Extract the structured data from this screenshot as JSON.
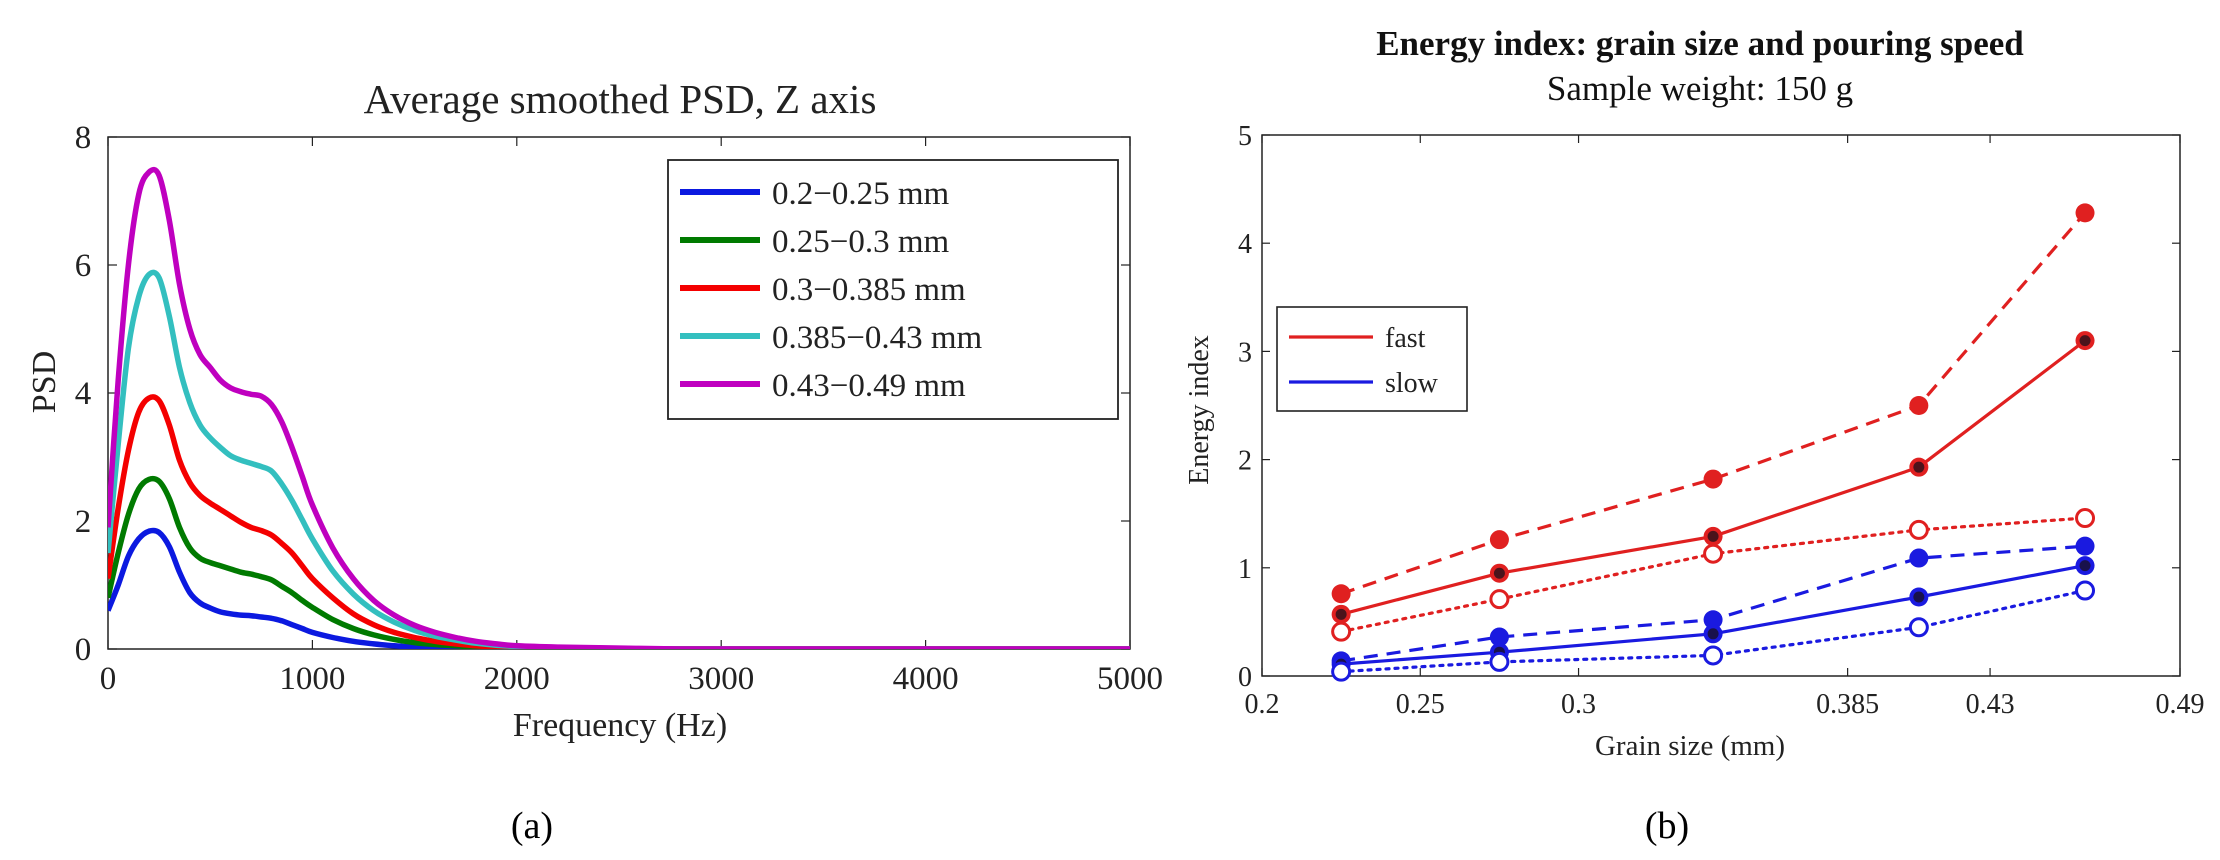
{
  "chart_data": [
    {
      "type": "line",
      "title": "Average smoothed PSD, Z axis",
      "xlabel": "Frequency (Hz)",
      "ylabel": "PSD",
      "xlim": [
        0,
        5000
      ],
      "ylim": [
        0,
        8
      ],
      "xticks": [
        0,
        1000,
        2000,
        3000,
        4000,
        5000
      ],
      "yticks": [
        0,
        2,
        4,
        6,
        8
      ],
      "legend_position": "top-right",
      "x": [
        0,
        50,
        100,
        150,
        200,
        250,
        300,
        350,
        400,
        450,
        500,
        550,
        600,
        650,
        700,
        750,
        800,
        850,
        900,
        950,
        1000,
        1100,
        1200,
        1300,
        1400,
        1500,
        1600,
        1700,
        1800,
        1900,
        2000,
        2200,
        2400,
        2600,
        2800,
        3000,
        3500,
        4000,
        4500,
        5000
      ],
      "series": [
        {
          "name": "0.2−0.25 mm",
          "color": "#0b19e0",
          "values": [
            0.6,
            1.0,
            1.45,
            1.72,
            1.84,
            1.82,
            1.6,
            1.2,
            0.88,
            0.72,
            0.64,
            0.58,
            0.55,
            0.53,
            0.52,
            0.5,
            0.48,
            0.44,
            0.38,
            0.32,
            0.26,
            0.18,
            0.12,
            0.08,
            0.05,
            0.03,
            0.02,
            0.01,
            0.01,
            0.0,
            0.0,
            0.0,
            0.0,
            0.0,
            0.0,
            0.0,
            0.0,
            0.0,
            0.0,
            0.0
          ]
        },
        {
          "name": "0.25−0.3 mm",
          "color": "#007a00",
          "values": [
            0.8,
            1.5,
            2.1,
            2.5,
            2.65,
            2.62,
            2.35,
            1.9,
            1.58,
            1.42,
            1.35,
            1.3,
            1.25,
            1.2,
            1.17,
            1.13,
            1.08,
            0.98,
            0.88,
            0.76,
            0.65,
            0.46,
            0.32,
            0.22,
            0.15,
            0.1,
            0.07,
            0.05,
            0.03,
            0.02,
            0.01,
            0.0,
            0.0,
            0.0,
            0.0,
            0.0,
            0.0,
            0.0,
            0.0,
            0.0
          ]
        },
        {
          "name": "0.3−0.385 mm",
          "color": "#f40000",
          "values": [
            1.1,
            2.2,
            3.1,
            3.7,
            3.92,
            3.88,
            3.5,
            2.95,
            2.6,
            2.4,
            2.28,
            2.18,
            2.08,
            1.98,
            1.9,
            1.85,
            1.78,
            1.65,
            1.5,
            1.3,
            1.1,
            0.8,
            0.55,
            0.38,
            0.26,
            0.18,
            0.12,
            0.08,
            0.05,
            0.03,
            0.02,
            0.01,
            0.0,
            0.0,
            0.0,
            0.0,
            0.0,
            0.0,
            0.0,
            0.0
          ]
        },
        {
          "name": "0.385−0.43 mm",
          "color": "#33bfbf",
          "values": [
            1.5,
            3.2,
            4.7,
            5.5,
            5.85,
            5.8,
            5.2,
            4.4,
            3.85,
            3.5,
            3.3,
            3.15,
            3.02,
            2.95,
            2.9,
            2.85,
            2.78,
            2.58,
            2.32,
            2.02,
            1.72,
            1.22,
            0.86,
            0.6,
            0.42,
            0.29,
            0.2,
            0.14,
            0.09,
            0.06,
            0.04,
            0.02,
            0.01,
            0.0,
            0.0,
            0.0,
            0.0,
            0.0,
            0.0,
            0.0
          ]
        },
        {
          "name": "0.43−0.49 mm",
          "color": "#bf00bf",
          "values": [
            1.9,
            4.2,
            6.0,
            7.1,
            7.45,
            7.4,
            6.7,
            5.7,
            5.0,
            4.6,
            4.4,
            4.2,
            4.08,
            4.02,
            3.98,
            3.95,
            3.82,
            3.55,
            3.15,
            2.7,
            2.25,
            1.58,
            1.1,
            0.76,
            0.53,
            0.37,
            0.26,
            0.18,
            0.12,
            0.08,
            0.05,
            0.03,
            0.02,
            0.01,
            0.0,
            0.0,
            0.0,
            0.0,
            0.0,
            0.0
          ]
        }
      ],
      "caption": "(a)"
    },
    {
      "type": "line",
      "title": "Energy index: grain size and pouring speed",
      "subtitle": "Sample weight: 150 g",
      "xlabel": "Grain size (mm)",
      "ylabel": "Energy index",
      "xlim": [
        0.2,
        0.49
      ],
      "ylim": [
        0,
        5
      ],
      "xticks": [
        0.2,
        0.25,
        0.3,
        0.385,
        0.43,
        0.49
      ],
      "xticklabels": [
        "0.2",
        "0.25",
        "0.3",
        "0.385",
        "0.43",
        "0.49"
      ],
      "yticks": [
        0,
        1,
        2,
        3,
        4,
        5
      ],
      "legend_position": "upper-left",
      "legend": [
        {
          "label": "fast",
          "color": "#e02020"
        },
        {
          "label": "slow",
          "color": "#1a1ae0"
        }
      ],
      "x": [
        0.225,
        0.275,
        0.3425,
        0.4075,
        0.46
      ],
      "series": [
        {
          "name": "fast, dashed, filled",
          "color": "#e02020",
          "dash": "dashed",
          "marker": "filled",
          "values": [
            0.76,
            1.26,
            1.82,
            2.5,
            4.28
          ]
        },
        {
          "name": "fast, solid, filled",
          "color": "#e02020",
          "dash": "solid",
          "marker": "filled-dark",
          "values": [
            0.57,
            0.95,
            1.29,
            1.93,
            3.1
          ]
        },
        {
          "name": "fast, dotted, open",
          "color": "#e02020",
          "dash": "dotted",
          "marker": "open",
          "values": [
            0.41,
            0.71,
            1.13,
            1.35,
            1.46
          ]
        },
        {
          "name": "slow, dashed, filled",
          "color": "#1a1ae0",
          "dash": "dashed",
          "marker": "filled",
          "values": [
            0.14,
            0.36,
            0.52,
            1.09,
            1.2
          ]
        },
        {
          "name": "slow, solid, filled",
          "color": "#1a1ae0",
          "dash": "solid",
          "marker": "filled-dark",
          "values": [
            0.11,
            0.22,
            0.39,
            0.73,
            1.02
          ]
        },
        {
          "name": "slow, dotted, open",
          "color": "#1a1ae0",
          "dash": "dotted",
          "marker": "open",
          "values": [
            0.04,
            0.13,
            0.19,
            0.45,
            0.79
          ]
        }
      ],
      "caption": "(b)"
    }
  ]
}
